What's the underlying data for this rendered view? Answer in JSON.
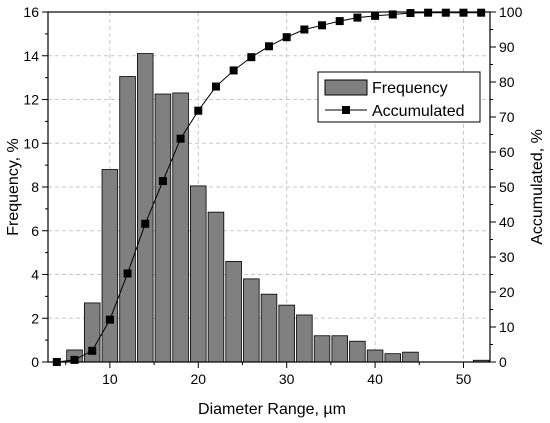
{
  "chart_data": {
    "type": "bar",
    "xlabel": "Diameter Range, µm",
    "ylabel": "Frequency, %",
    "y2label": "Accumulated, %",
    "xlim": [
      3,
      53
    ],
    "ylim": [
      0,
      16
    ],
    "y2lim": [
      0,
      100
    ],
    "xticks": [
      10,
      20,
      30,
      40,
      50
    ],
    "yticks": [
      0,
      2,
      4,
      6,
      8,
      10,
      12,
      14,
      16
    ],
    "y2ticks": [
      0,
      10,
      20,
      30,
      40,
      50,
      60,
      70,
      80,
      90,
      100
    ],
    "grid": true,
    "legend_position": "top-right",
    "series": [
      {
        "name": "Frequency",
        "type": "bar",
        "axis": "left",
        "color": "#808080",
        "x": [
          6,
          8,
          10,
          12,
          14,
          16,
          18,
          20,
          22,
          24,
          26,
          28,
          30,
          32,
          34,
          36,
          38,
          40,
          42,
          44,
          46,
          48,
          50,
          52
        ],
        "values": [
          0.55,
          2.7,
          8.8,
          13.05,
          14.1,
          12.25,
          12.3,
          8.05,
          6.85,
          4.6,
          3.8,
          3.1,
          2.6,
          2.15,
          1.2,
          1.2,
          0.95,
          0.55,
          0.38,
          0.45,
          0.0,
          0.0,
          0.0,
          0.08
        ]
      },
      {
        "name": "Accumulated",
        "type": "line",
        "axis": "right",
        "color": "#000000",
        "x": [
          4,
          6,
          8,
          10,
          12,
          14,
          16,
          18,
          20,
          22,
          24,
          26,
          28,
          30,
          32,
          34,
          36,
          38,
          40,
          42,
          44,
          46,
          48,
          50,
          52
        ],
        "values": [
          0,
          0.6,
          3.2,
          12.1,
          25.3,
          39.5,
          51.7,
          63.8,
          71.8,
          78.7,
          83.3,
          87.1,
          90.2,
          92.8,
          95.0,
          96.2,
          97.4,
          98.4,
          98.9,
          99.3,
          99.7,
          99.8,
          99.8,
          99.8,
          99.8
        ]
      }
    ]
  }
}
